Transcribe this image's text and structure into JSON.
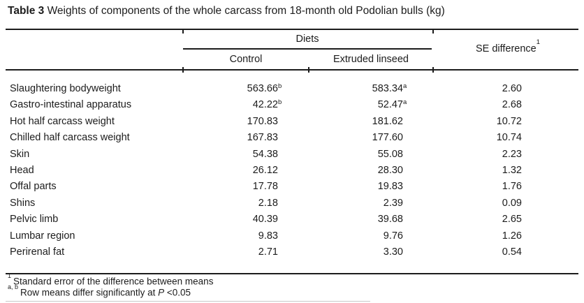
{
  "title": {
    "label": "Table 3",
    "text": "Weights of components of the whole carcass from 18-month old Podolian bulls (kg)"
  },
  "table": {
    "group_header": "Diets",
    "se_header": "SE difference",
    "se_header_sup": "1",
    "columns": {
      "control": "Control",
      "linseed": "Extruded linseed"
    },
    "rows": [
      {
        "label": "Slaughtering bodyweight",
        "control": "563.66",
        "control_sup": "b",
        "linseed": "583.34",
        "linseed_sup": "a",
        "se": "2.60"
      },
      {
        "label": "Gastro-intestinal apparatus",
        "control": "42.22",
        "control_sup": "b",
        "linseed": "52.47",
        "linseed_sup": "a",
        "se": "2.68"
      },
      {
        "label": "Hot half carcass weight",
        "control": "170.83",
        "control_sup": "",
        "linseed": "181.62",
        "linseed_sup": "",
        "se": "10.72"
      },
      {
        "label": "Chilled half carcass weight",
        "control": "167.83",
        "control_sup": "",
        "linseed": "177.60",
        "linseed_sup": "",
        "se": "10.74"
      },
      {
        "label": "Skin",
        "control": "54.38",
        "control_sup": "",
        "linseed": "55.08",
        "linseed_sup": "",
        "se": "2.23"
      },
      {
        "label": "Head",
        "control": "26.12",
        "control_sup": "",
        "linseed": "28.30",
        "linseed_sup": "",
        "se": "1.32"
      },
      {
        "label": "Offal parts",
        "control": "17.78",
        "control_sup": "",
        "linseed": "19.83",
        "linseed_sup": "",
        "se": "1.76"
      },
      {
        "label": "Shins",
        "control": "2.18",
        "control_sup": "",
        "linseed": "2.39",
        "linseed_sup": "",
        "se": "0.09"
      },
      {
        "label": "Pelvic limb",
        "control": "40.39",
        "control_sup": "",
        "linseed": "39.68",
        "linseed_sup": "",
        "se": "2.65"
      },
      {
        "label": "Lumbar region",
        "control": "9.83",
        "control_sup": "",
        "linseed": "9.76",
        "linseed_sup": "",
        "se": "1.26"
      },
      {
        "label": "Perirenal fat",
        "control": "2.71",
        "control_sup": "",
        "linseed": "3.30",
        "linseed_sup": "",
        "se": "0.54"
      }
    ],
    "footnotes": {
      "f1_sup": "1",
      "f1_text": "Standard error of the difference between means",
      "f2_sup": "a, b",
      "f2_text_before": "Row means differ significantly at ",
      "f2_italic": "P",
      "f2_text_after": " <0.05"
    }
  },
  "colors": {
    "text": "#1c1c1c",
    "rule": "#1c1c1c",
    "faint_rule": "#c9c9c9",
    "background": "#ffffff"
  }
}
